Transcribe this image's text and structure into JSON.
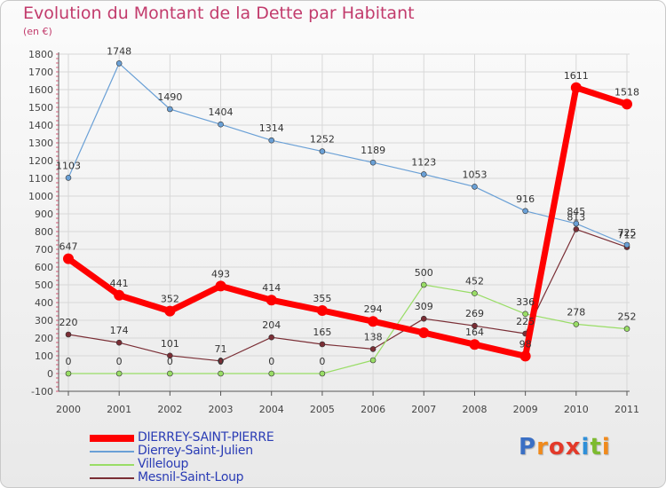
{
  "chart_data": {
    "type": "line",
    "title": "Evolution du Montant de la Dette par Habitant",
    "subtitle": "(en €)",
    "xlabel": "",
    "ylabel": "",
    "x": [
      "2000",
      "2001",
      "2002",
      "2003",
      "2004",
      "2005",
      "2006",
      "2007",
      "2008",
      "2009",
      "2010",
      "2011"
    ],
    "ylim": [
      -100,
      1800
    ],
    "yticks": [
      -100,
      0,
      100,
      200,
      300,
      400,
      500,
      600,
      700,
      800,
      900,
      1000,
      1100,
      1200,
      1300,
      1400,
      1500,
      1600,
      1700,
      1800
    ],
    "grid": true,
    "legend_position": "bottom-left",
    "series": [
      {
        "name": "DIERREY-SAINT-PIERRE",
        "color": "#ff0000",
        "values": [
          647,
          441,
          352,
          493,
          414,
          355,
          294,
          230,
          164,
          98,
          1611,
          1518
        ],
        "labels": [
          "647",
          "441",
          "352",
          "493",
          "414",
          "355",
          "294",
          "",
          "164",
          "98",
          "1611",
          "1518"
        ]
      },
      {
        "name": "Dierrey-Saint-Julien",
        "color": "#6aa0d6",
        "values": [
          1103,
          1748,
          1490,
          1404,
          1314,
          1252,
          1189,
          1123,
          1053,
          916,
          845,
          725
        ],
        "labels": [
          "1103",
          "1748",
          "1490",
          "1404",
          "1314",
          "1252",
          "1189",
          "1123",
          "1053",
          "916",
          "845",
          "725"
        ]
      },
      {
        "name": "Villeloup",
        "color": "#99dd66",
        "values": [
          0,
          0,
          0,
          0,
          0,
          0,
          75,
          500,
          452,
          336,
          278,
          252
        ],
        "labels": [
          "0",
          "0",
          "0",
          "0",
          "0",
          "0",
          "",
          "500",
          "452",
          "336",
          "278",
          "252"
        ]
      },
      {
        "name": "Mesnil-Saint-Loup",
        "color": "#7a2e35",
        "values": [
          220,
          174,
          101,
          71,
          204,
          165,
          138,
          309,
          269,
          225,
          813,
          712
        ],
        "labels": [
          "220",
          "174",
          "101",
          "71",
          "204",
          "165",
          "138",
          "309",
          "269",
          "225",
          "813",
          "712"
        ]
      }
    ]
  },
  "logo": {
    "text": "Proxiti",
    "letters": [
      "P",
      "r",
      "o",
      "x",
      "i",
      "t",
      "i"
    ],
    "colors": [
      "#3a6fc4",
      "#f08a1c",
      "#e33a2a",
      "#e33a2a",
      "#2f8fd8",
      "#7dbb2f",
      "#f08a1c"
    ]
  },
  "colors": {
    "title": "#c23b6c",
    "axis": "#444444",
    "grid": "#d8d8d8"
  }
}
